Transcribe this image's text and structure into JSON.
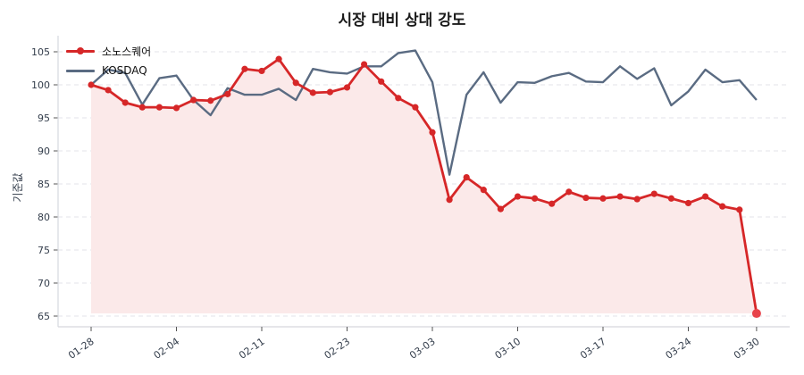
{
  "chart_data": {
    "type": "line",
    "title": "시장 대비 상대 강도",
    "xlabel": "",
    "ylabel": "기준값",
    "ylim": [
      63.8,
      107.4
    ],
    "yticks": [
      65,
      70,
      75,
      80,
      85,
      90,
      95,
      100,
      105
    ],
    "xtick_labels": [
      "01-28",
      "02-04",
      "02-11",
      "02-23",
      "03-03",
      "03-10",
      "03-17",
      "03-24",
      "03-30"
    ],
    "xtick_indices": [
      0,
      5,
      10,
      15,
      20,
      25,
      30,
      35,
      39
    ],
    "grid": "horizontal dashed",
    "legend_position": "upper left",
    "x": [
      "01-28",
      "01-29",
      "01-30",
      "01-31",
      "02-03",
      "02-04",
      "02-05",
      "02-06",
      "02-07",
      "02-10",
      "02-11",
      "02-12",
      "02-13",
      "02-14",
      "02-17",
      "02-23",
      "02-24",
      "02-25",
      "02-26",
      "02-27",
      "03-03",
      "03-04",
      "03-05",
      "03-06",
      "03-07",
      "03-10",
      "03-11",
      "03-12",
      "03-13",
      "03-14",
      "03-17",
      "03-18",
      "03-19",
      "03-20",
      "03-21",
      "03-24",
      "03-25",
      "03-26",
      "03-27",
      "03-30"
    ],
    "series": [
      {
        "name": "소노스퀘어",
        "color": "#d62728",
        "marker": "circle",
        "fill": "#fbe9e9",
        "values": [
          100.0,
          99.2,
          97.3,
          96.6,
          96.6,
          96.5,
          97.7,
          97.6,
          98.6,
          102.4,
          102.1,
          103.9,
          100.3,
          98.8,
          98.9,
          99.6,
          103.1,
          100.5,
          98.0,
          96.6,
          92.8,
          82.6,
          86.0,
          84.1,
          81.2,
          83.1,
          82.8,
          82.0,
          83.8,
          82.9,
          82.8,
          83.1,
          82.7,
          83.5,
          82.8,
          82.1,
          83.1,
          81.6,
          81.1,
          65.4
        ]
      },
      {
        "name": "KOSDAQ",
        "color": "#5a6b82",
        "marker": "none",
        "values": [
          100.0,
          102.3,
          101.8,
          97.0,
          101.0,
          101.4,
          97.7,
          95.4,
          99.5,
          98.5,
          98.5,
          99.4,
          97.7,
          102.4,
          101.9,
          101.7,
          102.8,
          102.8,
          104.8,
          105.2,
          100.4,
          86.4,
          98.5,
          101.9,
          97.3,
          100.4,
          100.3,
          101.3,
          101.8,
          100.5,
          100.4,
          102.8,
          100.9,
          102.5,
          96.9,
          99.0,
          102.3,
          100.4,
          100.7,
          97.7
        ]
      }
    ]
  }
}
